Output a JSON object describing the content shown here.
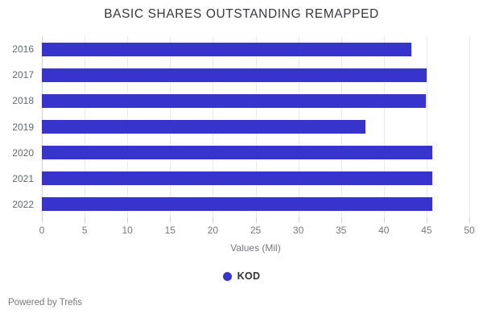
{
  "chart_data": {
    "type": "bar",
    "orientation": "horizontal",
    "title": "BASIC SHARES OUTSTANDING REMAPPED",
    "categories": [
      "2016",
      "2017",
      "2018",
      "2019",
      "2020",
      "2021",
      "2022"
    ],
    "series": [
      {
        "name": "KOD",
        "values": [
          43.2,
          45.0,
          44.9,
          37.9,
          45.7,
          45.7,
          45.7
        ]
      }
    ],
    "xlabel": "Values (Mil)",
    "ylabel": "",
    "xlim": [
      0,
      50
    ],
    "xticks": [
      0,
      5,
      10,
      15,
      20,
      25,
      30,
      35,
      40,
      45,
      50
    ],
    "grid": "vertical",
    "legend_position": "bottom-center",
    "bar_color": "#3733cd"
  },
  "colors": {
    "bar": "#3733cd",
    "gridline": "#e7e9ea",
    "axis_line": "#ccd5dd",
    "title_text": "#37373d",
    "tick_text": "#75787b",
    "category_text": "#64686c",
    "legend_text": "#303036",
    "footer_text": "#75787b",
    "background": "#ffffff"
  },
  "footer": {
    "text": "Powered by Trefis"
  }
}
